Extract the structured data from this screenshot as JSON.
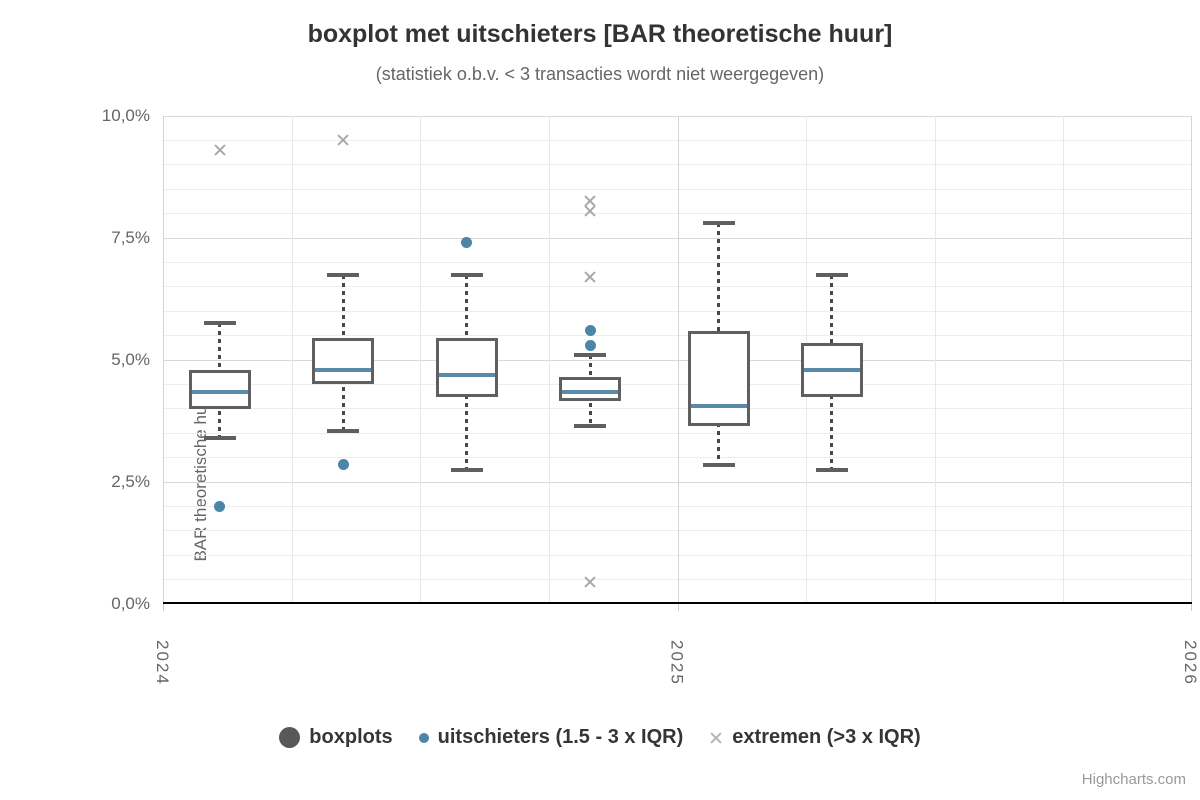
{
  "title": "boxplot met uitschieters [BAR theoretische huur]",
  "subtitle": "(statistiek o.b.v. < 3 transacties wordt niet weergegeven)",
  "credit": "Highcharts.com",
  "y_axis": {
    "title": "BAR theoretische huur",
    "ticks": [
      {
        "value": 0,
        "label": "0,0%"
      },
      {
        "value": 2.5,
        "label": "2,5%"
      },
      {
        "value": 5,
        "label": "5,0%"
      },
      {
        "value": 7.5,
        "label": "7,5%"
      },
      {
        "value": 10,
        "label": "10,0%"
      }
    ]
  },
  "x_axis": {
    "ticks": [
      {
        "value": 2024,
        "label": "2024"
      },
      {
        "value": 2025,
        "label": "2025"
      },
      {
        "value": 2026,
        "label": "2026"
      }
    ]
  },
  "legend": {
    "items": [
      {
        "label": "boxplots",
        "marker": "circle-large"
      },
      {
        "label": "uitschieters (1.5 - 3 x IQR)",
        "marker": "circle-small"
      },
      {
        "label": "extremen (>3 x IQR)",
        "marker": "x"
      }
    ]
  },
  "chart_data": {
    "type": "boxplot",
    "title": "boxplot met uitschieters [BAR theoretische huur]",
    "subtitle": "(statistiek o.b.v. < 3 transacties wordt niet weergegeven)",
    "ylabel": "BAR theoretische huur",
    "unit": "%",
    "ylim": [
      0,
      10
    ],
    "y_major_step": 2.5,
    "y_minor_step": 0.5,
    "xlim": [
      2024,
      2026
    ],
    "x_minor_step": 0.25,
    "grid": "on",
    "legend_position": "bottom-center",
    "boxplots": [
      {
        "x": 2024.11,
        "low": 3.4,
        "q1": 4.0,
        "median": 4.35,
        "q3": 4.8,
        "high": 5.75
      },
      {
        "x": 2024.35,
        "low": 3.55,
        "q1": 4.5,
        "median": 4.8,
        "q3": 5.45,
        "high": 6.75
      },
      {
        "x": 2024.59,
        "low": 2.75,
        "q1": 4.25,
        "median": 4.7,
        "q3": 5.45,
        "high": 6.75
      },
      {
        "x": 2024.83,
        "low": 3.65,
        "q1": 4.15,
        "median": 4.35,
        "q3": 4.65,
        "high": 5.1
      },
      {
        "x": 2025.08,
        "low": 2.85,
        "q1": 3.65,
        "median": 4.05,
        "q3": 5.6,
        "high": 7.8
      },
      {
        "x": 2025.3,
        "low": 2.75,
        "q1": 4.25,
        "median": 4.8,
        "q3": 5.35,
        "high": 6.75
      }
    ],
    "outliers": [
      {
        "x": 2024.11,
        "y": 2.0
      },
      {
        "x": 2024.35,
        "y": 2.85
      },
      {
        "x": 2024.59,
        "y": 7.4
      },
      {
        "x": 2024.83,
        "y": 5.6
      },
      {
        "x": 2024.83,
        "y": 5.3
      }
    ],
    "extremes": [
      {
        "x": 2024.11,
        "y": 9.3
      },
      {
        "x": 2024.35,
        "y": 9.5
      },
      {
        "x": 2024.83,
        "y": 8.25
      },
      {
        "x": 2024.83,
        "y": 8.05
      },
      {
        "x": 2024.83,
        "y": 6.7
      },
      {
        "x": 2024.83,
        "y": 0.45
      }
    ],
    "colors": {
      "box_border": "#5f5f5f",
      "whisker": "#474747",
      "median": "#5b8aa8",
      "outlier": "#4d85a6",
      "extreme": "#a8a8a8",
      "grid_minor": "#ededed",
      "grid_major": "#d9d9d9",
      "grid_vertical_minor": "#e8e8e8",
      "grid_vertical_year": "#d4d4d4",
      "baseline": "#000000",
      "legend_marker_boxplots": "#58585a",
      "axis_label": "#666666",
      "title_text": "#333333"
    }
  }
}
